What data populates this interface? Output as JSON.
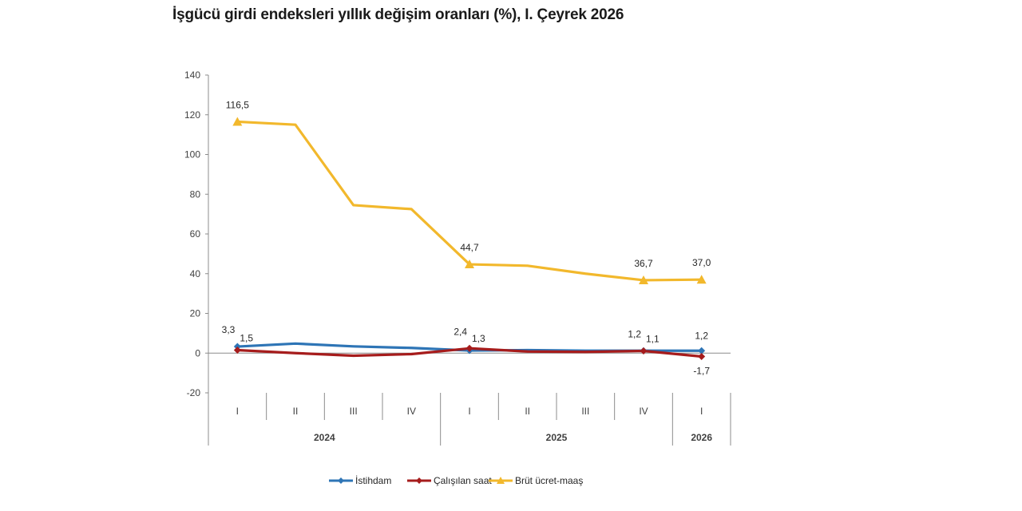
{
  "chart_data": {
    "type": "line",
    "title": "İşgücü girdi endeksleri yıllık değişim oranları (%), I. Çeyrek 2026",
    "quarters": [
      "I",
      "II",
      "III",
      "IV",
      "I",
      "II",
      "III",
      "IV",
      "I"
    ],
    "years": [
      {
        "label": "2024",
        "span": [
          0,
          3
        ]
      },
      {
        "label": "2025",
        "span": [
          4,
          7
        ]
      },
      {
        "label": "2026",
        "span": [
          8,
          8
        ]
      }
    ],
    "ylim": [
      -20,
      140
    ],
    "yticks": [
      -20,
      0,
      20,
      40,
      60,
      80,
      100,
      120,
      140
    ],
    "grid": false,
    "legend_position": "bottom",
    "series": [
      {
        "name": "İstihdam",
        "color": "#2e75b6",
        "marker": "diamond",
        "values": [
          3.3,
          4.8,
          3.4,
          2.6,
          1.3,
          1.5,
          1.2,
          1.2,
          1.2
        ],
        "labels": [
          {
            "index": 0,
            "text": "3,3",
            "pos": "top-left"
          },
          {
            "index": 4,
            "text": "1,3",
            "pos": "top-right"
          },
          {
            "index": 7,
            "text": "1,2",
            "pos": "top-left"
          },
          {
            "index": 8,
            "text": "1,2",
            "pos": "top"
          }
        ]
      },
      {
        "name": "Çalışılan saat",
        "color": "#a61c1c",
        "marker": "diamond",
        "values": [
          1.5,
          0.0,
          -1.3,
          -0.5,
          2.4,
          0.8,
          0.6,
          1.1,
          -1.7
        ],
        "labels": [
          {
            "index": 0,
            "text": "1,5",
            "pos": "top-right"
          },
          {
            "index": 4,
            "text": "2,4",
            "pos": "top-left"
          },
          {
            "index": 7,
            "text": "1,1",
            "pos": "top-right"
          },
          {
            "index": 8,
            "text": "-1,7",
            "pos": "bottom"
          }
        ]
      },
      {
        "name": "Brüt ücret-maaş",
        "color": "#f2b82c",
        "marker": "triangle",
        "values": [
          116.5,
          115.0,
          74.5,
          72.5,
          44.7,
          44.0,
          40.0,
          36.7,
          37.0
        ],
        "labels": [
          {
            "index": 0,
            "text": "116,5",
            "pos": "top"
          },
          {
            "index": 4,
            "text": "44,7",
            "pos": "top"
          },
          {
            "index": 7,
            "text": "36,7",
            "pos": "top"
          },
          {
            "index": 8,
            "text": "37,0",
            "pos": "top"
          }
        ]
      }
    ]
  }
}
